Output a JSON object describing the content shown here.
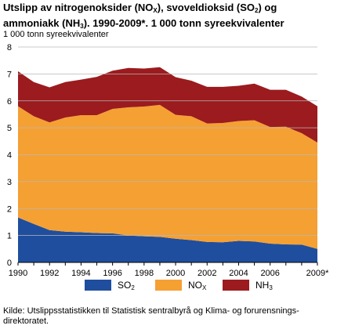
{
  "title": {
    "line1_a": "Utslipp av nitrogenoksider (NO",
    "line1_sub1": "X",
    "line1_b": "), svoveldioksid (SO",
    "line1_sub2": "2",
    "line1_c": ") og",
    "line2_a": "ammoniakk (NH",
    "line2_sub": "3",
    "line2_b": "). 1990-2009*. 1 000 tonn syreekvivalenter"
  },
  "source_text": "Kilde: Utslippsstatistikken til Statistisk sentralbyrå og Klima- og forurensnings-direktoratet.",
  "legend": [
    {
      "base": "SO",
      "sub": "2",
      "color": "#1f4e9e"
    },
    {
      "base": "NO",
      "sub": "X",
      "color": "#f5a033"
    },
    {
      "base": "NH",
      "sub": "3",
      "color": "#9b1b1e"
    }
  ],
  "chart_data": {
    "type": "area",
    "stacked": true,
    "ylabel": "1 000 tonn syreekvivalenter",
    "ylim": [
      0,
      8
    ],
    "yticks": [
      "0",
      "1",
      "2",
      "3",
      "4",
      "5",
      "6",
      "7",
      "8"
    ],
    "x": [
      1990,
      1991,
      1992,
      1993,
      1994,
      1995,
      1996,
      1997,
      1998,
      1999,
      2000,
      2001,
      2002,
      2003,
      2004,
      2005,
      2006,
      2007,
      2008,
      2009
    ],
    "xticks": [
      "1990",
      "1992",
      "1994",
      "1996",
      "1998",
      "2000",
      "2002",
      "2004",
      "2006",
      "2009*"
    ],
    "grid": "horizontal",
    "series": [
      {
        "name": "SO2",
        "color": "#1f4e9e",
        "values": [
          1.67,
          1.43,
          1.2,
          1.14,
          1.12,
          1.09,
          1.08,
          1.0,
          0.97,
          0.95,
          0.88,
          0.83,
          0.76,
          0.75,
          0.8,
          0.78,
          0.7,
          0.67,
          0.66,
          0.5
        ]
      },
      {
        "name": "NOX",
        "color": "#f5a033",
        "values": [
          4.13,
          4.0,
          4.0,
          4.24,
          4.35,
          4.38,
          4.62,
          4.76,
          4.82,
          4.9,
          4.6,
          4.6,
          4.4,
          4.43,
          4.45,
          4.5,
          4.33,
          4.37,
          4.14,
          3.95
        ]
      },
      {
        "name": "NH3",
        "color": "#9b1b1e",
        "values": [
          1.3,
          1.27,
          1.3,
          1.32,
          1.32,
          1.42,
          1.42,
          1.46,
          1.41,
          1.4,
          1.4,
          1.32,
          1.36,
          1.34,
          1.31,
          1.36,
          1.38,
          1.37,
          1.36,
          1.35
        ]
      }
    ]
  }
}
